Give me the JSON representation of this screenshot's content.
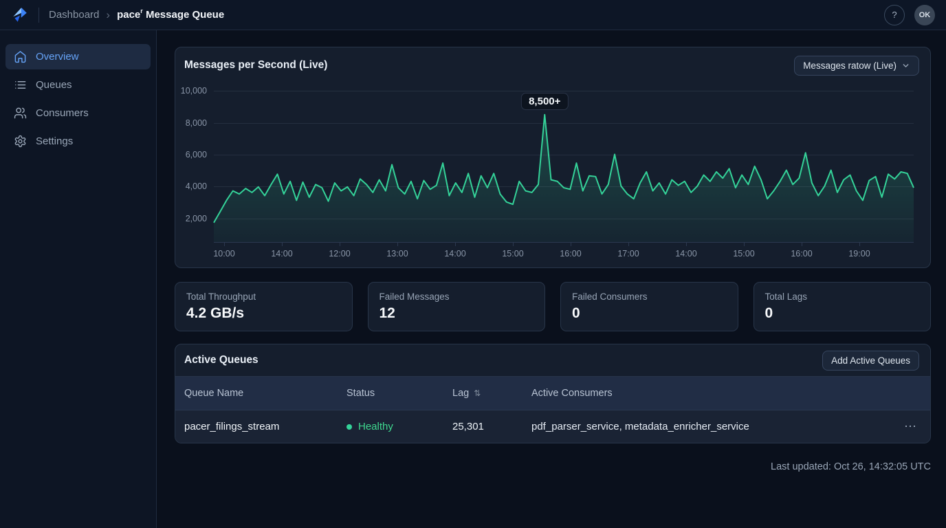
{
  "topbar": {
    "breadcrumb_root": "Dashboard",
    "separator": "›",
    "title_prefix": "pace",
    "title_glitch": "r",
    "title_rest": " Message Queue",
    "help_glyph": "?",
    "avatar_text": "OK"
  },
  "sidebar": {
    "items": [
      {
        "label": "Overview",
        "icon": "home-icon",
        "active": true
      },
      {
        "label": "Queues",
        "icon": "list-icon",
        "active": false
      },
      {
        "label": "Consumers",
        "icon": "users-icon",
        "active": false
      },
      {
        "label": "Settings",
        "icon": "gear-icon",
        "active": false
      }
    ]
  },
  "chart_panel": {
    "title": "Messages per Second (Live)",
    "dropdown_label": "Messages ratow (Live)",
    "peak_annotation": "8,500+"
  },
  "chart_data": {
    "type": "line",
    "title": "Messages per Second (Live)",
    "legend": "none",
    "grid": "horizontal",
    "y_ticks": [
      10000,
      8000,
      6000,
      4000,
      2000
    ],
    "y_tick_labels": [
      "10,000",
      "8,000",
      "6,000",
      "4,000",
      "2,000"
    ],
    "ylim": [
      480,
      10480
    ],
    "x_tick_labels": [
      "10:00",
      "14:00",
      "12:00",
      "13:00",
      "14:00",
      "15:00",
      "16:00",
      "17:00",
      "14:00",
      "15:00",
      "16:00",
      "19:00"
    ],
    "annotation": {
      "text": "8,500+",
      "at_value": 8500,
      "x_index": 52
    },
    "series": [
      {
        "name": "Messages ratow (Live)",
        "values": [
          1700,
          2400,
          3100,
          3700,
          3500,
          3850,
          3600,
          3950,
          3400,
          4100,
          4750,
          3500,
          4300,
          3100,
          4250,
          3300,
          4100,
          3900,
          3050,
          4200,
          3700,
          3950,
          3400,
          4450,
          4100,
          3600,
          4400,
          3700,
          5350,
          3900,
          3500,
          4300,
          3200,
          4350,
          3800,
          4050,
          5450,
          3400,
          4200,
          3600,
          4800,
          3300,
          4650,
          3900,
          4800,
          3500,
          3000,
          2850,
          4300,
          3700,
          3600,
          4100,
          8500,
          4400,
          4300,
          3900,
          3800,
          5450,
          3700,
          4650,
          4600,
          3500,
          4100,
          6000,
          4000,
          3500,
          3200,
          4200,
          4900,
          3700,
          4200,
          3500,
          4400,
          4050,
          4300,
          3600,
          4000,
          4700,
          4300,
          4900,
          4500,
          5100,
          3900,
          4700,
          4100,
          5250,
          4400,
          3200,
          3700,
          4300,
          5000,
          4100,
          4500,
          6100,
          4200,
          3400,
          4000,
          5000,
          3600,
          4400,
          4700,
          3700,
          3100,
          4350,
          4600,
          3300,
          4750,
          4450,
          4900,
          4800,
          3900
        ]
      }
    ]
  },
  "stats": [
    {
      "label": "Total Throughput",
      "value": "4.2 GB/s"
    },
    {
      "label": "Failed Messages",
      "value": "12"
    },
    {
      "label": "Failed Consumers",
      "value": "0"
    },
    {
      "label": "Total Lags",
      "value": "0"
    }
  ],
  "queues_panel": {
    "title": "Active Queues",
    "add_button": "Add Active Queues",
    "columns": [
      "Queue Name",
      "Status",
      "Lag",
      "Active Consumers"
    ],
    "rows": [
      {
        "queue_name": "pacer_filings_stream",
        "status": "Healthy",
        "lag": "25,301",
        "consumers": "pdf_parser_service, metadata_enricher_service"
      }
    ]
  },
  "footer": {
    "last_updated": "Last updated: Oct 26, 14:32:05 UTC"
  },
  "icons": {
    "sort": "⇅",
    "ellipsis": "⋯",
    "status_dot": "status-dot"
  },
  "colors": {
    "accent_blue": "#66a3f7",
    "line_green": "#34d399",
    "healthy_green": "#3fd98f",
    "panel_bg": "#151e2d",
    "page_bg": "#0a101c"
  }
}
